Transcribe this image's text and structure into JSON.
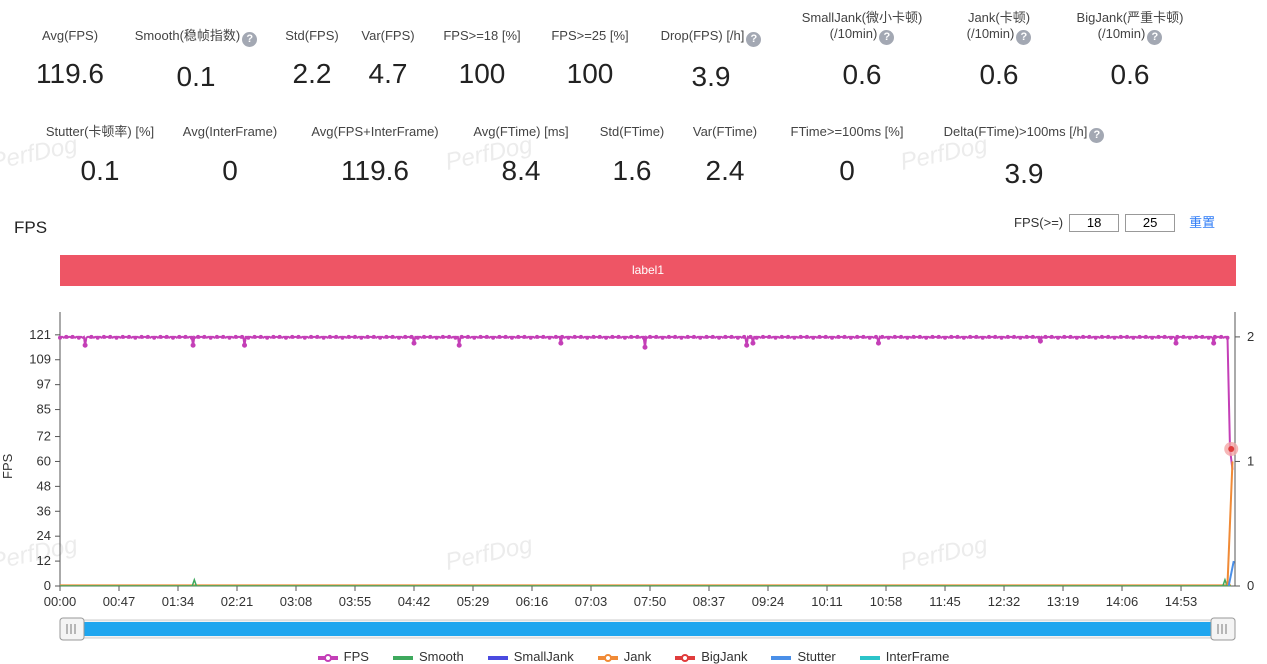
{
  "stats_row1": [
    {
      "label": "Avg(FPS)",
      "value": "119.6",
      "help": false
    },
    {
      "label": "Smooth(稳帧指数)",
      "value": "0.1",
      "help": true
    },
    {
      "label": "Std(FPS)",
      "value": "2.2",
      "help": false
    },
    {
      "label": "Var(FPS)",
      "value": "4.7",
      "help": false
    },
    {
      "label": "FPS>=18 [%]",
      "value": "100",
      "help": false
    },
    {
      "label": "FPS>=25 [%]",
      "value": "100",
      "help": false
    },
    {
      "label": "Drop(FPS) [/h]",
      "value": "3.9",
      "help": true
    },
    {
      "label": "SmallJank(微小卡顿)",
      "label2": "(/10min)",
      "value": "0.6",
      "help": true
    },
    {
      "label": "Jank(卡顿)",
      "label2": "(/10min)",
      "value": "0.6",
      "help": true
    },
    {
      "label": "BigJank(严重卡顿)",
      "label2": "(/10min)",
      "value": "0.6",
      "help": true
    }
  ],
  "stats_row2": [
    {
      "label": "Stutter(卡顿率) [%]",
      "value": "0.1",
      "help": false
    },
    {
      "label": "Avg(InterFrame)",
      "value": "0",
      "help": false
    },
    {
      "label": "Avg(FPS+InterFrame)",
      "value": "119.6",
      "help": false
    },
    {
      "label": "Avg(FTime) [ms]",
      "value": "8.4",
      "help": false
    },
    {
      "label": "Std(FTime)",
      "value": "1.6",
      "help": false
    },
    {
      "label": "Var(FTime)",
      "value": "2.4",
      "help": false
    },
    {
      "label": "FTime>=100ms [%]",
      "value": "0",
      "help": false
    },
    {
      "label": "Delta(FTime)>100ms [/h]",
      "value": "3.9",
      "help": true
    }
  ],
  "help_glyph": "?",
  "watermark": "PerfDog",
  "fps_title": "FPS",
  "threshold": {
    "label": "FPS(>=)",
    "value1": "18",
    "value2": "25",
    "reset": "重置"
  },
  "label_band": "label1",
  "colors": {
    "fps": "#c43fb7",
    "smooth": "#3ea95d",
    "smalljank": "#4a4ae0",
    "jank": "#f08a36",
    "bigjank": "#e03c3c",
    "stutter": "#4a8fe8",
    "interframe": "#2cc4c9",
    "band": "#ee5565",
    "slider": "#1fa6ef"
  },
  "chart_data": {
    "type": "line",
    "ylabel": "FPS",
    "yticks": [
      0,
      12,
      24,
      36,
      48,
      60,
      72,
      85,
      97,
      109,
      121
    ],
    "ylim": [
      0,
      132
    ],
    "y2ticks": [
      0,
      1,
      2
    ],
    "y2lim": [
      0,
      2.2
    ],
    "xticks": [
      "00:00",
      "00:47",
      "01:34",
      "02:21",
      "03:08",
      "03:55",
      "04:42",
      "05:29",
      "06:16",
      "07:03",
      "07:50",
      "08:37",
      "09:24",
      "10:11",
      "10:58",
      "11:45",
      "12:32",
      "13:19",
      "14:06",
      "14:53"
    ],
    "duration_s": 936,
    "fps_baseline": 120,
    "fps_dips": [
      [
        20,
        116
      ],
      [
        106,
        116
      ],
      [
        147,
        116
      ],
      [
        282,
        117
      ],
      [
        318,
        116
      ],
      [
        399,
        117
      ],
      [
        466,
        115
      ],
      [
        547,
        116
      ],
      [
        552,
        117
      ],
      [
        652,
        117
      ],
      [
        781,
        118
      ],
      [
        889,
        117
      ],
      [
        919,
        117
      ]
    ],
    "fps_end_drop": [
      [
        930,
        120
      ],
      [
        932,
        66
      ],
      [
        934,
        56
      ]
    ],
    "bigjank_marker": [
      933,
      66
    ],
    "smooth_spikes": [
      [
        107,
        3
      ],
      [
        928,
        3
      ]
    ],
    "grid": false,
    "series": [
      {
        "name": "FPS"
      },
      {
        "name": "Smooth"
      },
      {
        "name": "SmallJank"
      },
      {
        "name": "Jank"
      },
      {
        "name": "BigJank"
      },
      {
        "name": "Stutter"
      },
      {
        "name": "InterFrame"
      }
    ]
  }
}
